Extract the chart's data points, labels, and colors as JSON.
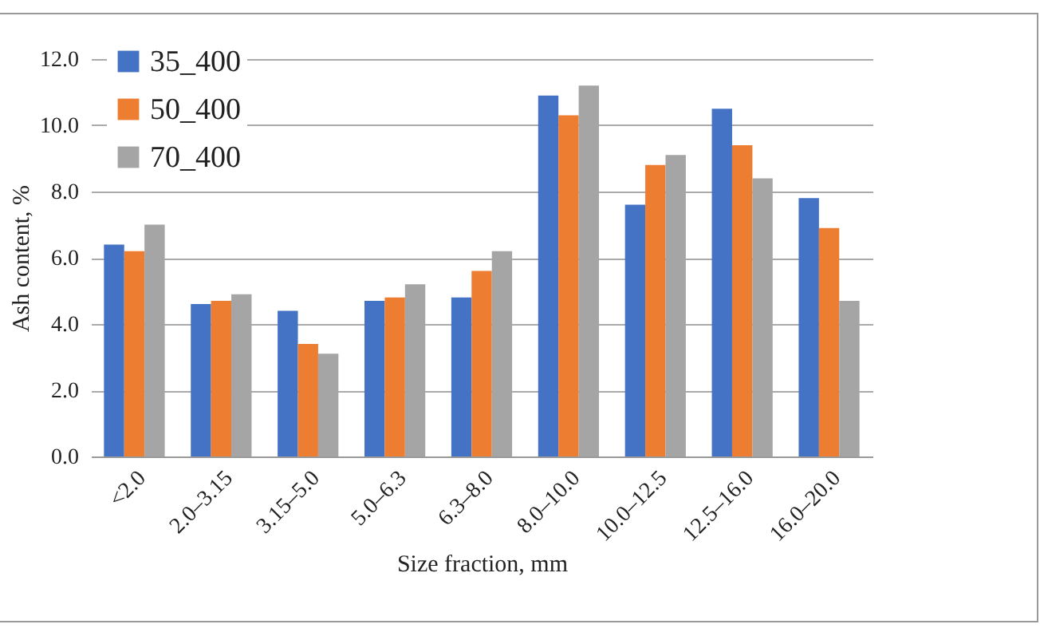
{
  "chart_data": {
    "type": "bar",
    "xlabel": "Size fraction, mm",
    "ylabel": "Ash content, %",
    "categories": [
      "<2.0",
      "2.0–3.15",
      "3.15–5.0",
      "5.0–6.3",
      "6.3–8.0",
      "8.0–10.0",
      "10.0–12.5",
      "12.5–16.0",
      "16.0–20.0"
    ],
    "series": [
      {
        "name": "35_400",
        "color": "#4472c4",
        "values": [
          6.4,
          4.6,
          4.4,
          4.7,
          4.8,
          10.9,
          7.6,
          10.5,
          7.8
        ]
      },
      {
        "name": "50_400",
        "color": "#ed7d31",
        "values": [
          6.2,
          4.7,
          3.4,
          4.8,
          5.6,
          10.3,
          8.8,
          9.4,
          6.9
        ]
      },
      {
        "name": "70_400",
        "color": "#a5a5a5",
        "values": [
          7.0,
          4.9,
          3.1,
          5.2,
          6.2,
          11.2,
          9.1,
          8.4,
          4.7
        ]
      }
    ],
    "ylim": [
      0,
      12
    ],
    "yticks": [
      {
        "value": 0,
        "label": "0.0"
      },
      {
        "value": 2,
        "label": "2.0"
      },
      {
        "value": 4,
        "label": "4.0"
      },
      {
        "value": 6,
        "label": "6.0"
      },
      {
        "value": 8,
        "label": "8.0"
      },
      {
        "value": 10,
        "label": "10.0"
      },
      {
        "value": 12,
        "label": "12.0"
      }
    ],
    "grid": "y",
    "legend": "top left"
  }
}
